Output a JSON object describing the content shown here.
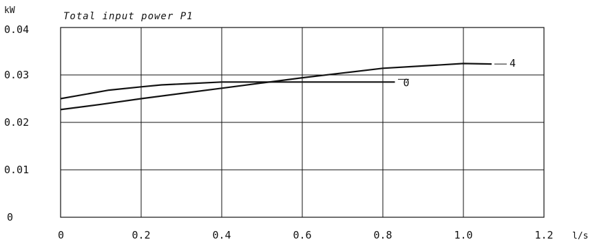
{
  "chart_data": {
    "type": "line",
    "title": "Total input power P1",
    "ylabel": "kW",
    "xlabel": "l/s",
    "xlim": [
      0,
      1.2
    ],
    "ylim": [
      0,
      0.04
    ],
    "grid": true,
    "x_ticks": [
      "0",
      "0.2",
      "0.4",
      "0.6",
      "0.8",
      "1.0",
      "1.2"
    ],
    "y_ticks": [
      "0",
      "0.01",
      "0.02",
      "0.03",
      "0.04"
    ],
    "series": [
      {
        "name": "0",
        "x": [
          0,
          0.12,
          0.2,
          0.25,
          0.3,
          0.4,
          0.5,
          0.6,
          0.7,
          0.8,
          0.83
        ],
        "y": [
          0.025,
          0.0268,
          0.0275,
          0.0279,
          0.0281,
          0.0285,
          0.0285,
          0.0285,
          0.0285,
          0.0285,
          0.0285
        ]
      },
      {
        "name": "4",
        "x": [
          0,
          0.1,
          0.2,
          0.3,
          0.4,
          0.5,
          0.6,
          0.7,
          0.8,
          0.9,
          1.0,
          1.07
        ],
        "y": [
          0.0227,
          0.0238,
          0.025,
          0.0261,
          0.0272,
          0.0283,
          0.0294,
          0.0304,
          0.0314,
          0.0319,
          0.0324,
          0.0323
        ]
      }
    ]
  }
}
